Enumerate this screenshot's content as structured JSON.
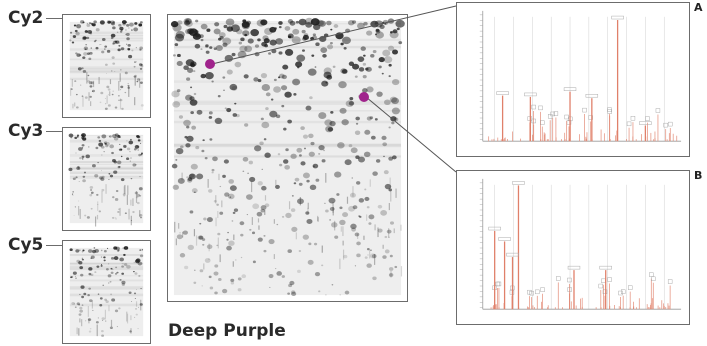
{
  "channels": [
    {
      "label": "Cy2"
    },
    {
      "label": "Cy3"
    },
    {
      "label": "Cy5"
    }
  ],
  "main_gel": {
    "label": "Deep Purple"
  },
  "spectra": [
    {
      "label": "A"
    },
    {
      "label": "B"
    }
  ],
  "colors": {
    "spot_marker": "#a0238c",
    "peak_line": "#e0806a",
    "frame": "#6c6c6c",
    "gel_spots": "#1a1a1a"
  }
}
